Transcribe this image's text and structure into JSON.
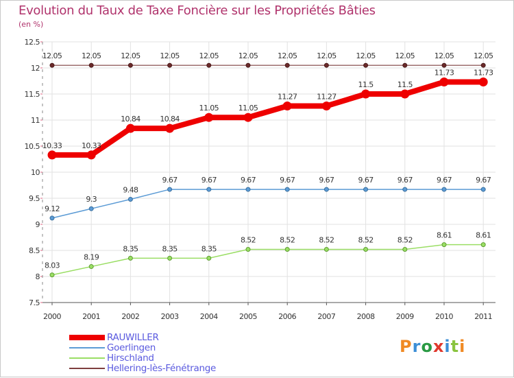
{
  "title": "Evolution du Taux de Taxe Foncière sur les Propriétés Bâties",
  "subtitle": "(en %)",
  "logo": {
    "text": "Proxiti",
    "letters": [
      "P",
      "r",
      "o",
      "x",
      "i",
      "t",
      "i"
    ],
    "letter_colors": [
      "#f08a24",
      "#3d8fd6",
      "#2a9a44",
      "#e0382c",
      "#3d8fd6",
      "#8ac43f",
      "#f08a24"
    ]
  },
  "chart_data": {
    "type": "line",
    "title": "Evolution du Taux de Taxe Foncière sur les Propriétés Bâties",
    "ylabel": "(en %)",
    "xlabel": "",
    "x": [
      "2000",
      "2001",
      "2002",
      "2003",
      "2004",
      "2005",
      "2006",
      "2007",
      "2008",
      "2009",
      "2010",
      "2011"
    ],
    "ylim": [
      7.5,
      12.5
    ],
    "yticks": [
      "7.5",
      "8",
      "8.5",
      "9",
      "9.5",
      "10",
      "10.5",
      "11",
      "11.5",
      "12",
      "12.5"
    ],
    "grid": true,
    "legend_position": "bottom-left",
    "series": [
      {
        "name": "RAUWILLER",
        "color": "#ee0000",
        "values": [
          10.33,
          10.33,
          10.84,
          10.84,
          11.05,
          11.05,
          11.27,
          11.27,
          11.5,
          11.5,
          11.73,
          11.73
        ],
        "labels": [
          "10.33",
          "10.33",
          "10.84",
          "10.84",
          "11.05",
          "11.05",
          "11.27",
          "11.27",
          "11.5",
          "11.5",
          "11.73",
          "11.73"
        ]
      },
      {
        "name": "Goerlingen",
        "color": "#5b9bd5",
        "values": [
          9.12,
          9.3,
          9.48,
          9.67,
          9.67,
          9.67,
          9.67,
          9.67,
          9.67,
          9.67,
          9.67,
          9.67
        ],
        "labels": [
          "9.12",
          "9.3",
          "9.48",
          "9.67",
          "9.67",
          "9.67",
          "9.67",
          "9.67",
          "9.67",
          "9.67",
          "9.67",
          "9.67"
        ]
      },
      {
        "name": "Hirschland",
        "color": "#9ade64",
        "values": [
          8.03,
          8.19,
          8.35,
          8.35,
          8.35,
          8.52,
          8.52,
          8.52,
          8.52,
          8.52,
          8.61,
          8.61
        ],
        "labels": [
          "8.03",
          "8.19",
          "8.35",
          "8.35",
          "8.35",
          "8.52",
          "8.52",
          "8.52",
          "8.52",
          "8.52",
          "8.61",
          "8.61"
        ]
      },
      {
        "name": "Hellering-lès-Fénétrange",
        "color": "#7d3e3e",
        "values": [
          12.05,
          12.05,
          12.05,
          12.05,
          12.05,
          12.05,
          12.05,
          12.05,
          12.05,
          12.05,
          12.05,
          12.05
        ],
        "labels": [
          "12.05",
          "12.05",
          "12.05",
          "12.05",
          "12.05",
          "12.05",
          "12.05",
          "12.05",
          "12.05",
          "12.05",
          "12.05",
          "12.05"
        ]
      }
    ]
  }
}
